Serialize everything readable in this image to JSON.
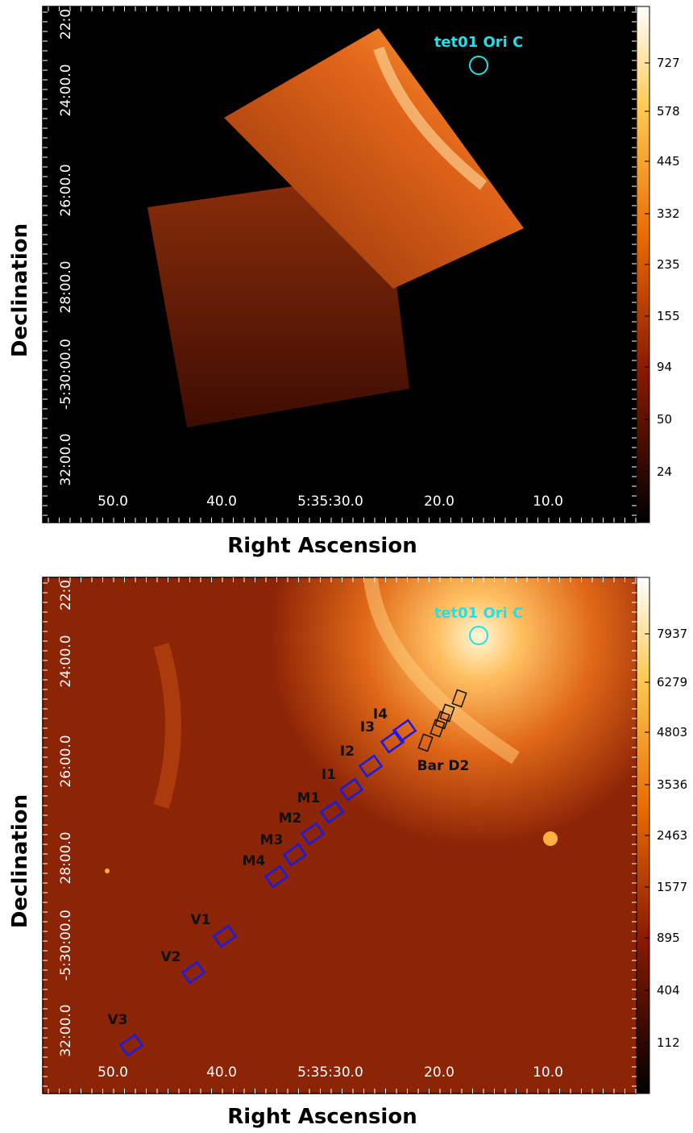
{
  "panels": [
    {
      "y_ticks": [
        "22:0",
        "24:00.0",
        "26:00.0",
        "28:00.0",
        "-5:30:00.0",
        "32:00.0"
      ],
      "x_ticks": [
        "50.0",
        "40.0",
        "5:35:30.0",
        "20.0",
        "10.0"
      ],
      "x_label": "Right Ascension",
      "y_label": "Declination",
      "colorbar_ticks": [
        727,
        578,
        445,
        332,
        235,
        155,
        94,
        50,
        24
      ],
      "source_label": "tet01 Ori C"
    },
    {
      "y_ticks": [
        "22:0",
        "24:00.0",
        "26:00.0",
        "28:00.0",
        "-5:30:00.0",
        "32:00.0"
      ],
      "x_ticks": [
        "50.0",
        "40.0",
        "5:35:30.0",
        "20.0",
        "10.0"
      ],
      "x_label": "Right Ascension",
      "y_label": "Declination",
      "colorbar_ticks": [
        7937,
        6279,
        4803,
        3536,
        2463,
        1577,
        895,
        404,
        112
      ],
      "source_label": "tet01 Ori C",
      "regions": [
        "I4",
        "I3",
        "I2",
        "I1",
        "M1",
        "M2",
        "M3",
        "M4",
        "V1",
        "V2",
        "V3"
      ],
      "bar_label": "Bar D2"
    }
  ]
}
